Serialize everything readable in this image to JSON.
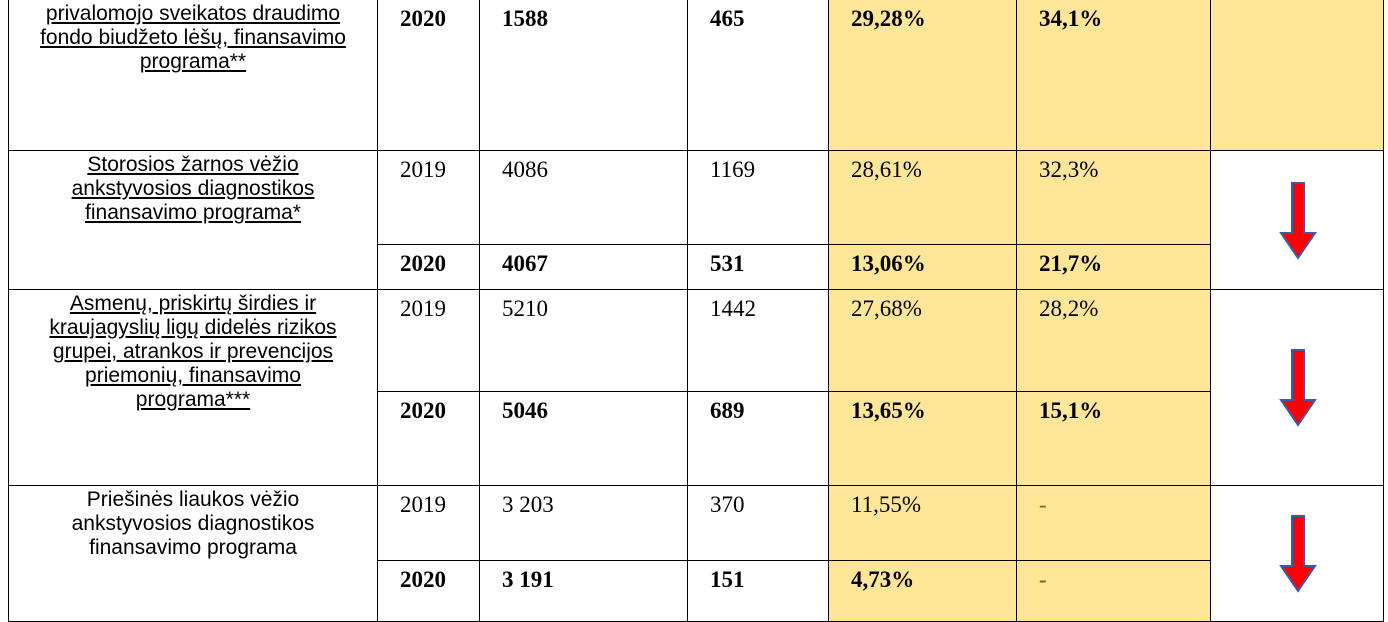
{
  "table": {
    "rows": [
      {
        "program": "privalomojo sveikatos draudimo fondo biudžeto lėšų, finansavimo programa**",
        "underlined": true,
        "entries": [
          {
            "year": "2020",
            "a": "1588",
            "b": "465",
            "p1": "29,28%",
            "p2": "34,1%"
          }
        ]
      },
      {
        "program": "Storosios žarnos vėžio ankstyvosios diagnostikos finansavimo programa*",
        "underlined": true,
        "entries": [
          {
            "year": "2019",
            "a": "4086",
            "b": "1169",
            "p1": "28,61%",
            "p2": "32,3%"
          },
          {
            "year": "2020",
            "a": "4067",
            "b": "531",
            "p1": "13,06%",
            "p2": "21,7%"
          }
        ]
      },
      {
        "program": "Asmenų, priskirtų širdies ir kraujagyslių ligų didelės rizikos grupei, atrankos ir prevencijos priemonių, finansavimo programa***",
        "underlined": true,
        "entries": [
          {
            "year": "2019",
            "a": "5210",
            "b": "1442",
            "p1": "27,68%",
            "p2": "28,2%"
          },
          {
            "year": "2020",
            "a": "5046",
            "b": "689",
            "p1": "13,65%",
            "p2": "15,1%"
          }
        ]
      },
      {
        "program": "Priešinės liaukos vėžio ankstyvosios diagnostikos finansavimo programa",
        "underlined": false,
        "entries": [
          {
            "year": "2019",
            "a": "3 203",
            "b": "370",
            "p1": "11,55%",
            "p2": "-"
          },
          {
            "year": "2020",
            "a": "3 191",
            "b": "151",
            "p1": "4,73%",
            "p2": "-"
          }
        ]
      }
    ]
  }
}
